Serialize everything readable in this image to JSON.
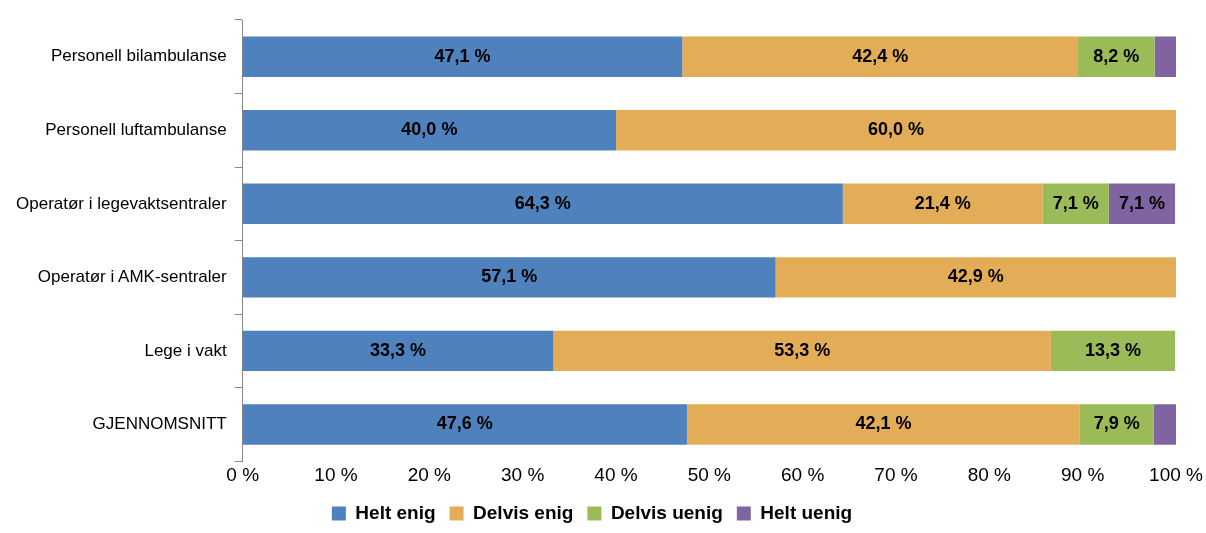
{
  "chart_data": {
    "type": "bar",
    "orientation": "horizontal",
    "stacked": true,
    "categories": [
      "Personell bilambulanse",
      "Personell luftambulanse",
      "Operatør i legevaktsentraler",
      "Operatør i AMK-sentraler",
      "Lege i vakt",
      "GJENNOMSNITT"
    ],
    "series": [
      {
        "name": "Helt enig",
        "color": "#4f81bd",
        "values": [
          47.1,
          40.0,
          64.3,
          57.1,
          33.3,
          47.6
        ],
        "value_labels": [
          "47,1 %",
          "40,0 %",
          "64,3 %",
          "57,1 %",
          "33,3 %",
          "47,6 %"
        ]
      },
      {
        "name": "Delvis enig",
        "color": "#e3ad57",
        "values": [
          42.4,
          60.0,
          21.4,
          42.9,
          53.3,
          42.1
        ],
        "value_labels": [
          "42,4 %",
          "60,0 %",
          "21,4 %",
          "42,9 %",
          "53,3 %",
          "42,1 %"
        ]
      },
      {
        "name": "Delvis uenig",
        "color": "#9bbb59",
        "values": [
          8.2,
          0,
          7.1,
          0,
          13.3,
          7.9
        ],
        "value_labels": [
          "8,2 %",
          null,
          "7,1 %",
          null,
          "13,3 %",
          "7,9 %"
        ]
      },
      {
        "name": "Helt uenig",
        "color": "#8064a2",
        "values": [
          2.3,
          0,
          7.1,
          0,
          0,
          2.4
        ],
        "value_labels": [
          null,
          null,
          "7,1 %",
          null,
          null,
          null
        ]
      }
    ],
    "xlim": [
      0,
      100
    ],
    "xticks": [
      {
        "value": 0,
        "label": "0 %"
      },
      {
        "value": 10,
        "label": "10 %"
      },
      {
        "value": 20,
        "label": "20 %"
      },
      {
        "value": 30,
        "label": "30 %"
      },
      {
        "value": 40,
        "label": "40 %"
      },
      {
        "value": 50,
        "label": "50 %"
      },
      {
        "value": 60,
        "label": "60 %"
      },
      {
        "value": 70,
        "label": "70 %"
      },
      {
        "value": 80,
        "label": "80 %"
      },
      {
        "value": 90,
        "label": "90 %"
      },
      {
        "value": 100,
        "label": "100 %"
      }
    ],
    "grid": false,
    "legend": "bottom"
  }
}
